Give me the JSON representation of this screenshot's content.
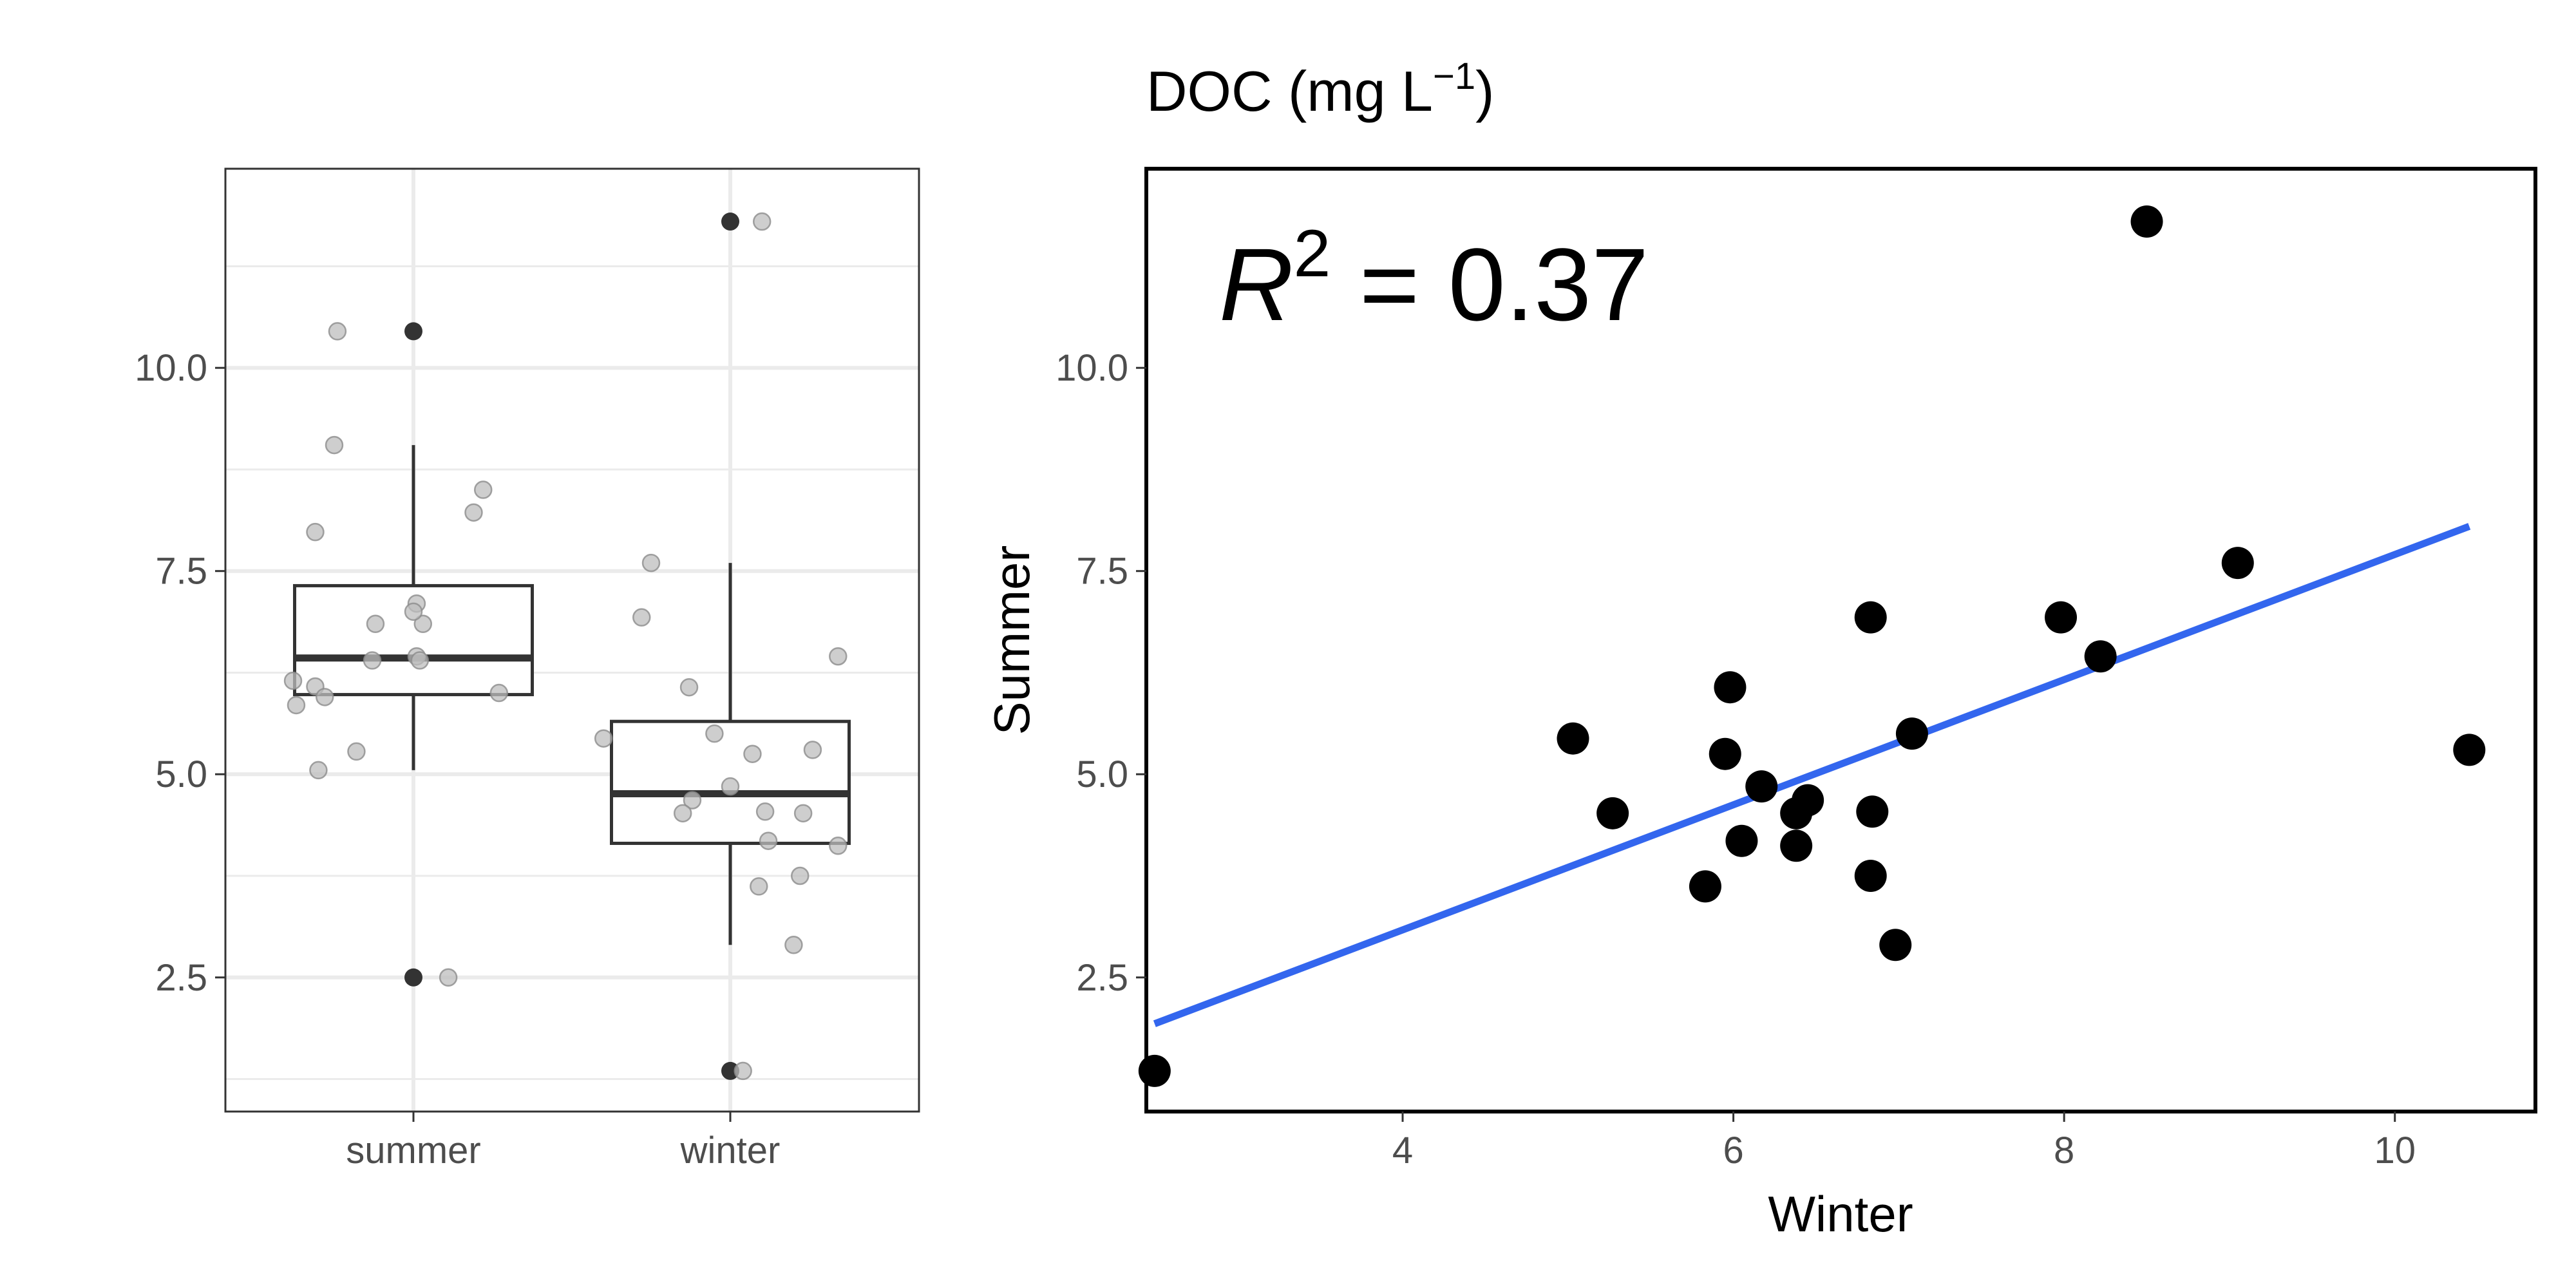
{
  "colors": {
    "grid": "#ebebeb",
    "box": "#333333",
    "jitter_fill": "#bdbdbd",
    "jitter_stroke": "#8c8c8c",
    "outlier": "#333333",
    "scatter_point": "#000000",
    "regression_line": "#3366ee",
    "tick_text": "#4d4d4d"
  },
  "chart_data": [
    {
      "type": "box",
      "xlabel": "",
      "ylabel": "",
      "categories": [
        "summer",
        "winter"
      ],
      "ylim": [
        0.85,
        12.45
      ],
      "yticks": [
        2.5,
        5.0,
        7.5,
        10.0
      ],
      "ytick_labels": [
        "2.5",
        "5.0",
        "7.5",
        "10.0"
      ],
      "grid": true,
      "boxes": [
        {
          "category": "summer",
          "min": 5.05,
          "q1": 5.98,
          "median": 6.43,
          "q3": 7.32,
          "max": 9.05,
          "outliers": [
            10.45,
            2.5
          ]
        },
        {
          "category": "winter",
          "min": 2.9,
          "q1": 4.15,
          "median": 4.76,
          "q3": 5.65,
          "max": 7.6,
          "outliers": [
            11.8,
            1.35
          ]
        }
      ],
      "jitter": [
        {
          "category": "summer",
          "points": [
            [
              -0.24,
              10.45
            ],
            [
              -0.25,
              9.05
            ],
            [
              -0.31,
              7.98
            ],
            [
              0.22,
              8.5
            ],
            [
              0.19,
              8.22
            ],
            [
              0.01,
              7.1
            ],
            [
              0.03,
              6.85
            ],
            [
              -0.12,
              6.85
            ],
            [
              0.0,
              7.0
            ],
            [
              0.01,
              6.45
            ],
            [
              0.02,
              6.4
            ],
            [
              -0.13,
              6.4
            ],
            [
              -0.38,
              6.15
            ],
            [
              -0.31,
              6.08
            ],
            [
              -0.28,
              5.95
            ],
            [
              -0.37,
              5.85
            ],
            [
              0.27,
              6.0
            ],
            [
              -0.18,
              5.28
            ],
            [
              -0.3,
              5.05
            ],
            [
              0.11,
              2.5
            ]
          ]
        },
        {
          "category": "winter",
          "points": [
            [
              0.1,
              11.8
            ],
            [
              -0.25,
              7.6
            ],
            [
              -0.28,
              6.93
            ],
            [
              -0.13,
              6.07
            ],
            [
              0.34,
              6.45
            ],
            [
              -0.4,
              5.44
            ],
            [
              -0.05,
              5.5
            ],
            [
              0.07,
              5.25
            ],
            [
              0.26,
              5.3
            ],
            [
              0.0,
              4.85
            ],
            [
              -0.12,
              4.68
            ],
            [
              -0.15,
              4.52
            ],
            [
              0.11,
              4.54
            ],
            [
              0.23,
              4.52
            ],
            [
              0.12,
              4.18
            ],
            [
              0.34,
              4.12
            ],
            [
              0.22,
              3.75
            ],
            [
              0.09,
              3.62
            ],
            [
              0.2,
              2.9
            ],
            [
              0.04,
              1.35
            ]
          ]
        }
      ]
    },
    {
      "type": "scatter",
      "title": "DOC (mg L",
      "title_superscript": "−1",
      "title_suffix": ")",
      "xlabel": "Winter",
      "ylabel": "Summer",
      "xlim": [
        2.45,
        10.85
      ],
      "ylim": [
        0.85,
        12.45
      ],
      "xticks": [
        4,
        6,
        8,
        10
      ],
      "xtick_labels": [
        "4",
        "6",
        "8",
        "10"
      ],
      "yticks": [
        2.5,
        5.0,
        7.5,
        10.0
      ],
      "ytick_labels": [
        "2.5",
        "5.0",
        "7.5",
        "10.0"
      ],
      "grid": false,
      "points": [
        {
          "x": 2.5,
          "y": 1.35
        },
        {
          "x": 5.03,
          "y": 5.44
        },
        {
          "x": 5.27,
          "y": 4.52
        },
        {
          "x": 5.83,
          "y": 3.62
        },
        {
          "x": 5.95,
          "y": 5.25
        },
        {
          "x": 5.98,
          "y": 6.07
        },
        {
          "x": 6.05,
          "y": 4.18
        },
        {
          "x": 6.17,
          "y": 4.85
        },
        {
          "x": 6.38,
          "y": 4.52
        },
        {
          "x": 6.38,
          "y": 4.12
        },
        {
          "x": 6.45,
          "y": 4.68
        },
        {
          "x": 6.83,
          "y": 3.75
        },
        {
          "x": 6.84,
          "y": 4.54
        },
        {
          "x": 6.83,
          "y": 6.93
        },
        {
          "x": 6.98,
          "y": 2.9
        },
        {
          "x": 7.08,
          "y": 5.5
        },
        {
          "x": 7.98,
          "y": 6.93
        },
        {
          "x": 8.22,
          "y": 6.45
        },
        {
          "x": 8.5,
          "y": 11.8
        },
        {
          "x": 9.05,
          "y": 7.6
        },
        {
          "x": 10.45,
          "y": 5.3
        }
      ],
      "regression_line": {
        "x": [
          2.5,
          10.45
        ],
        "y": [
          1.93,
          8.05
        ]
      },
      "annotation": {
        "label": "R",
        "superscript": "2",
        "value": " = 0.37"
      }
    }
  ]
}
